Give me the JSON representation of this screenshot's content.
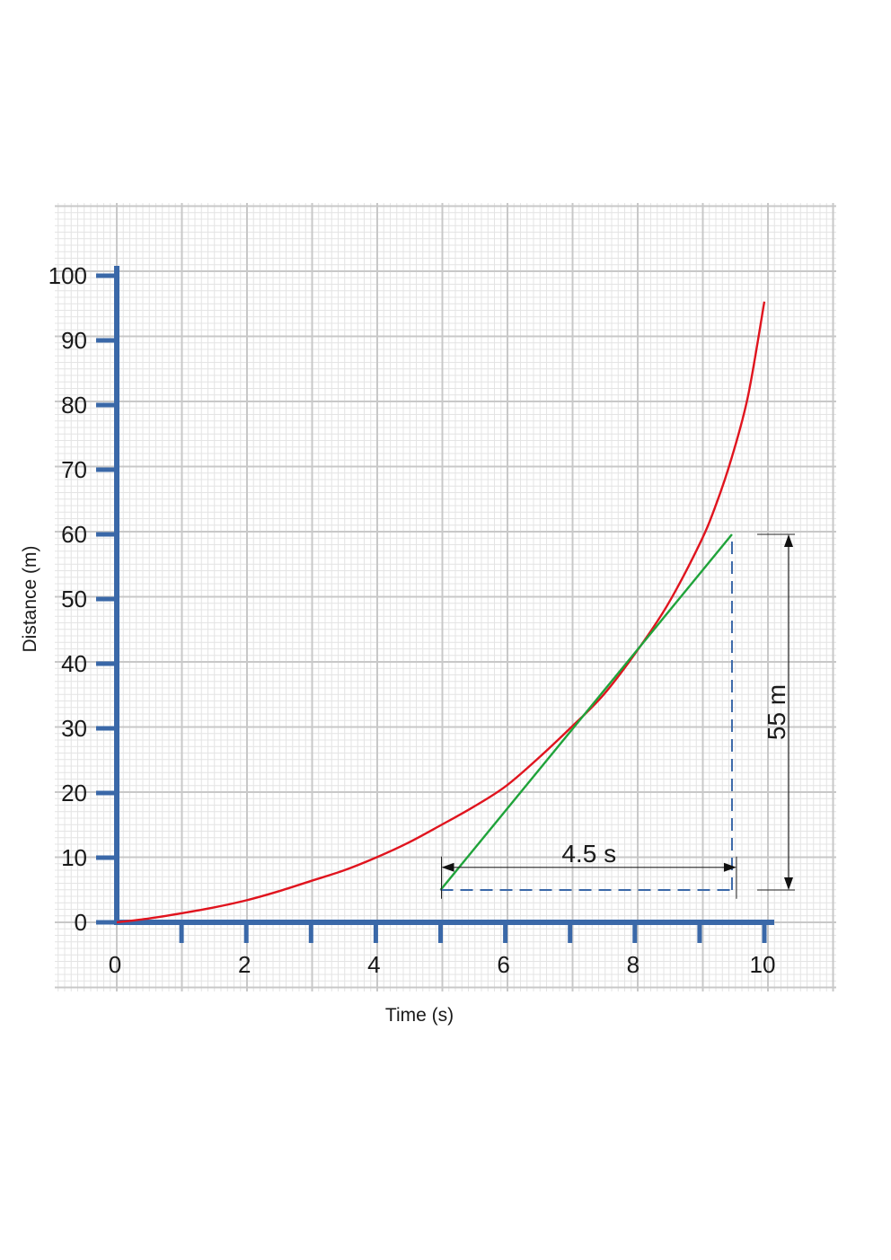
{
  "chart_data": {
    "type": "line",
    "title": "",
    "xlabel": "Time (s)",
    "ylabel": "Distance (m)",
    "xlim": [
      0,
      10
    ],
    "ylim": [
      0,
      100
    ],
    "grid": true,
    "x_ticks": [
      0,
      2,
      4,
      6,
      8,
      10
    ],
    "x_tick_labels": [
      "0",
      "2",
      "4",
      "6",
      "8",
      "10"
    ],
    "y_ticks": [
      0,
      10,
      20,
      30,
      40,
      50,
      60,
      70,
      80,
      90,
      100
    ],
    "y_tick_labels": [
      "0",
      "10",
      "20",
      "30",
      "40",
      "50",
      "60",
      "70",
      "80",
      "90",
      "100"
    ],
    "series": [
      {
        "color": "#e0141e",
        "x": [
          0,
          0.5,
          1,
          1.5,
          2,
          2.5,
          3,
          3.5,
          4,
          4.5,
          5,
          5.5,
          6,
          6.5,
          7,
          7.5,
          8,
          8.5,
          9,
          9.25,
          9.5,
          9.75,
          10
        ],
        "y": [
          0,
          0.6,
          1.4,
          2.3,
          3.4,
          4.8,
          6.4,
          8.0,
          10.0,
          12.3,
          15.0,
          17.8,
          21.0,
          25.3,
          30.0,
          35.0,
          41.5,
          49.0,
          58.5,
          64.5,
          72.0,
          81.5,
          96.0
        ]
      },
      {
        "color": "#1fa33a",
        "x": [
          5.0,
          9.5
        ],
        "y": [
          5,
          60
        ]
      }
    ],
    "annotations": {
      "time_interval": {
        "label": "4.5 s",
        "x_start": 5.0,
        "x_end": 9.5,
        "y": 8.5
      },
      "distance_interval": {
        "label": "55 m",
        "y_start": 5,
        "y_end": 60,
        "x": 10.0
      },
      "guide_lines": {
        "x_from": 5.0,
        "x_to": 9.5,
        "y_bottom": 5,
        "y_top": 60,
        "color": "#3a68a8"
      }
    },
    "colors": {
      "axis": "#3a68a8",
      "grid_major": "#c8c8c8",
      "grid_minor": "#e4e4e4"
    }
  }
}
